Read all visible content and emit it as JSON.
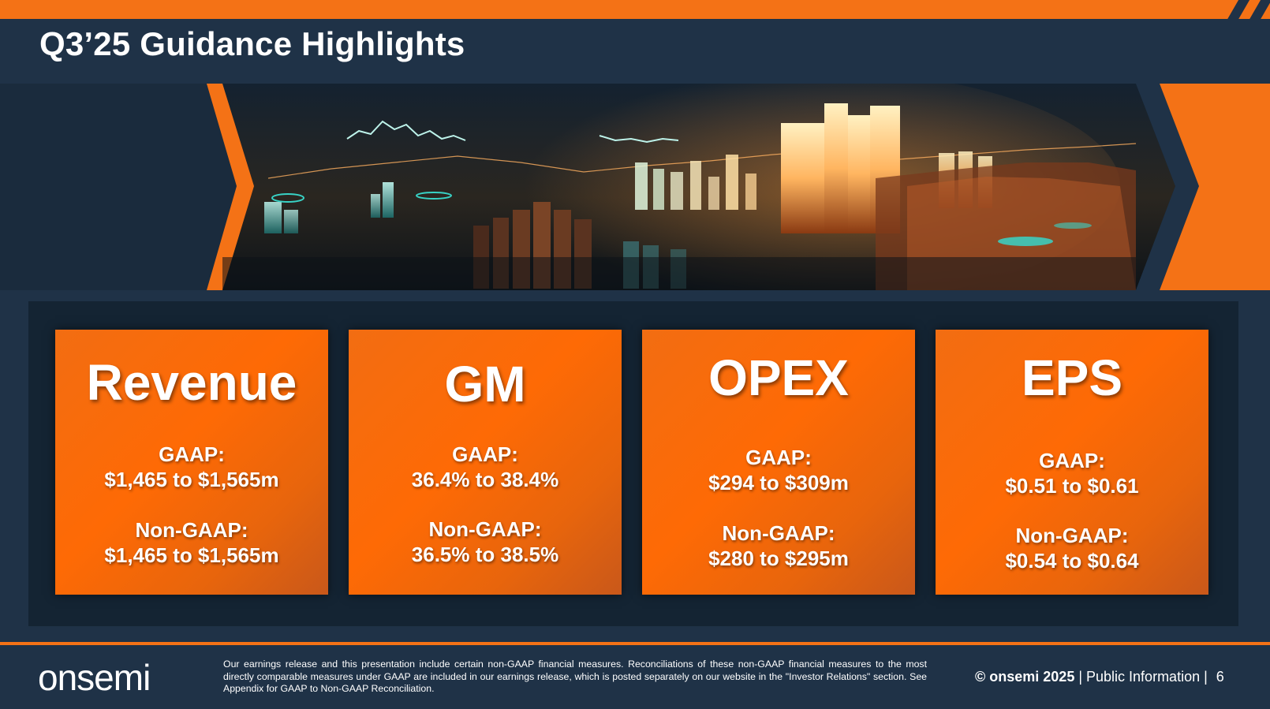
{
  "header": {
    "title": "Q3’25 Guidance Highlights"
  },
  "colors": {
    "accent_orange": "#f47216",
    "navy": "#1f3247",
    "panel": "#142433",
    "card_orange": "#fe6a05"
  },
  "hero_image": {
    "icon": "financial-city-chart-illustration"
  },
  "cards": [
    {
      "title": "Revenue",
      "gaap_label": "GAAP:",
      "gaap_value": "$1,465 to $1,565m",
      "non_gaap_label": "Non-GAAP:",
      "non_gaap_value": "$1,465 to $1,565m"
    },
    {
      "title": "GM",
      "gaap_label": "GAAP:",
      "gaap_value": "36.4% to 38.4%",
      "non_gaap_label": "Non-GAAP:",
      "non_gaap_value": "36.5% to 38.5%"
    },
    {
      "title": "OPEX",
      "gaap_label": "GAAP:",
      "gaap_value": "$294 to $309m",
      "non_gaap_label": "Non-GAAP:",
      "non_gaap_value": "$280 to $295m"
    },
    {
      "title": "EPS",
      "gaap_label": "GAAP:",
      "gaap_value": "$0.51 to $0.61",
      "non_gaap_label": "Non-GAAP:",
      "non_gaap_value": "$0.54 to $0.64"
    }
  ],
  "footer": {
    "logo_text": "onsemi",
    "disclaimer": "Our earnings release and this presentation include certain non-GAAP financial measures. Reconciliations of these non-GAAP financial measures to the most directly comparable measures under GAAP are included in our earnings release, which is posted separately on our website in the \"Investor Relations\" section. See Appendix for GAAP to Non-GAAP Reconciliation.",
    "copyright": "© onsemi 2025",
    "classification": "| Public Information |",
    "page_number": "6"
  }
}
